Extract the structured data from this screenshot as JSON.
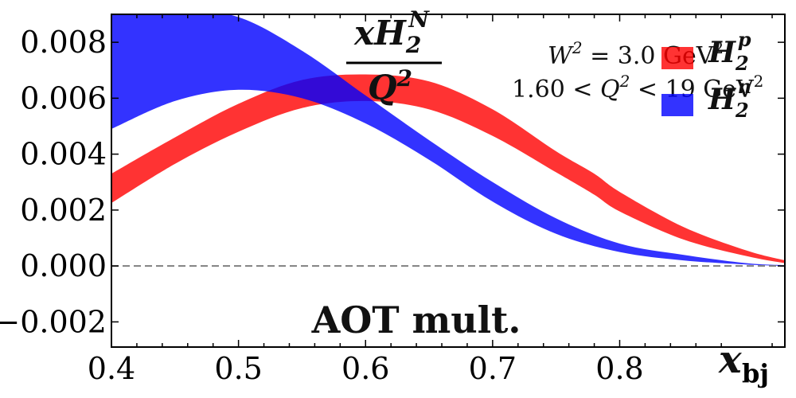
{
  "chart_data": {
    "type": "area",
    "title": "",
    "xlabel": "x_bj",
    "ylabel": "xH_2^N / Q^2",
    "xlim": [
      0.4,
      0.93
    ],
    "ylim": [
      -0.0029,
      0.009
    ],
    "x_ticks": [
      0.4,
      0.5,
      0.6,
      0.7,
      0.8
    ],
    "x_tick_labels": [
      "0.4",
      "0.5",
      "0.6",
      "0.7",
      "0.8"
    ],
    "y_ticks": [
      -0.002,
      0.0,
      0.002,
      0.004,
      0.006,
      0.008
    ],
    "y_tick_labels": [
      "−0.002",
      "0.000",
      "0.002",
      "0.004",
      "0.006",
      "0.008"
    ],
    "reference_line": {
      "y": 0.0,
      "style": "dashed",
      "color": "#808080"
    },
    "legend_position": "top-right",
    "grid": false,
    "annotations": {
      "method": "AOT mult.",
      "w2": "W² = 3.0 GeV²",
      "q2_range": "1.60 < Q² < 19 GeV²"
    },
    "series": [
      {
        "name": "H_2^p",
        "color": "#ff0000",
        "x": [
          0.4,
          0.45,
          0.5,
          0.55,
          0.6,
          0.65,
          0.7,
          0.75,
          0.78,
          0.8,
          0.85,
          0.9,
          0.93
        ],
        "lower": [
          0.00225,
          0.00365,
          0.0048,
          0.00565,
          0.0059,
          0.0056,
          0.00465,
          0.00335,
          0.00255,
          0.00195,
          0.00095,
          0.00035,
          0.0001
        ],
        "upper": [
          0.0033,
          0.0046,
          0.0058,
          0.00665,
          0.00685,
          0.0066,
          0.0056,
          0.0041,
          0.0033,
          0.00265,
          0.0014,
          0.00055,
          0.0002
        ]
      },
      {
        "name": "H_2^n",
        "color": "#0000ff",
        "x": [
          0.4,
          0.45,
          0.5,
          0.55,
          0.6,
          0.65,
          0.7,
          0.75,
          0.8,
          0.85,
          0.9,
          0.93
        ],
        "lower": [
          0.0049,
          0.0059,
          0.0063,
          0.006,
          0.0051,
          0.0038,
          0.0023,
          0.00115,
          0.0005,
          0.0002,
          5e-05,
          0.0
        ],
        "upper": [
          0.0092,
          0.0092,
          0.0089,
          0.0077,
          0.0061,
          0.0045,
          0.003,
          0.0017,
          0.0008,
          0.0004,
          0.0001,
          3e-05
        ]
      }
    ]
  }
}
